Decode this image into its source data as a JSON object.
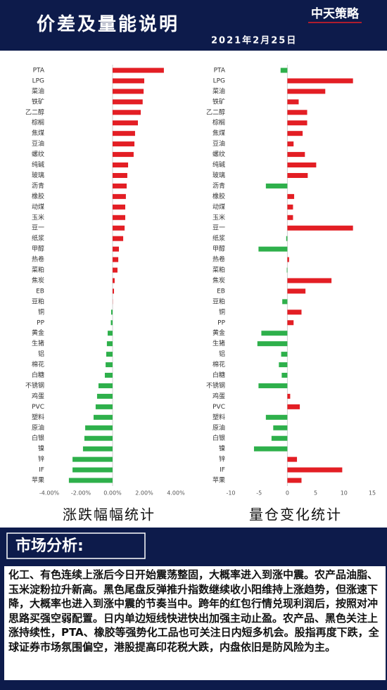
{
  "header": {
    "title": "价差及量能说明",
    "date": "2021年2月25日",
    "logo": "中天策略"
  },
  "chart_data": [
    {
      "type": "bar",
      "orientation": "horizontal",
      "title": "涨跌幅幅统计",
      "categories": [
        "PTA",
        "LPG",
        "菜油",
        "铁矿",
        "乙二醇",
        "棕榈",
        "焦煤",
        "豆油",
        "螺纹",
        "纯碱",
        "玻璃",
        "沥青",
        "橡胶",
        "动煤",
        "玉米",
        "豆一",
        "纸浆",
        "甲醇",
        "热卷",
        "菜粕",
        "焦炭",
        "EB",
        "豆粕",
        "铜",
        "PP",
        "黄金",
        "生猪",
        "铝",
        "棉花",
        "白糖",
        "不锈钢",
        "鸡蛋",
        "PVC",
        "塑料",
        "原油",
        "白银",
        "镍",
        "锌",
        "IF",
        "苹果"
      ],
      "values": [
        3.24,
        2.0,
        1.96,
        1.9,
        1.78,
        1.6,
        1.42,
        1.38,
        1.33,
        0.98,
        0.93,
        0.89,
        0.84,
        0.8,
        0.8,
        0.76,
        0.67,
        0.4,
        0.36,
        0.31,
        0.13,
        0.09,
        0.01,
        -0.09,
        -0.11,
        -0.31,
        -0.36,
        -0.4,
        -0.44,
        -0.49,
        -0.89,
        -0.98,
        -1.07,
        -1.2,
        -1.73,
        -1.78,
        -1.87,
        -2.53,
        -2.53,
        -2.76
      ],
      "xlim": [
        -4,
        4
      ],
      "xticks": [
        {
          "value": -4,
          "label": "-4.00%"
        },
        {
          "value": -2,
          "label": "-2.00%"
        },
        {
          "value": 0,
          "label": "0.00%"
        },
        {
          "value": 2,
          "label": "2.00%"
        },
        {
          "value": 4,
          "label": "4.00%"
        }
      ],
      "positive_color": "#e31e24",
      "negative_color": "#2eb04b"
    },
    {
      "type": "bar",
      "orientation": "horizontal",
      "title": "量仓变化统计",
      "categories": [
        "PTA",
        "LPG",
        "菜油",
        "铁矿",
        "乙二醇",
        "棕榈",
        "焦煤",
        "豆油",
        "螺纹",
        "纯碱",
        "玻璃",
        "沥青",
        "橡胶",
        "动煤",
        "玉米",
        "豆一",
        "纸浆",
        "甲醇",
        "热卷",
        "菜粕",
        "焦炭",
        "EB",
        "豆粕",
        "铜",
        "PP",
        "黄金",
        "生猪",
        "铝",
        "棉花",
        "白糖",
        "不锈钢",
        "鸡蛋",
        "PVC",
        "塑料",
        "原油",
        "白银",
        "镍",
        "锌",
        "IF",
        "苹果"
      ],
      "values": [
        -1.2,
        11.6,
        6.7,
        2.0,
        3.5,
        3.5,
        2.7,
        1.1,
        3.1,
        5.1,
        3.6,
        -3.8,
        1.2,
        1.0,
        1.0,
        11.6,
        -0.2,
        -5.1,
        0.3,
        -0.1,
        7.8,
        3.2,
        -0.9,
        2.5,
        1.1,
        -4.6,
        -5.3,
        -1.1,
        -1.5,
        -1.0,
        -5.1,
        0.5,
        2.2,
        -3.8,
        -2.5,
        -2.8,
        -5.9,
        1.7,
        9.7,
        2.5
      ],
      "xlim": [
        -10,
        15
      ],
      "xticks": [
        -10,
        -5,
        0,
        5,
        10,
        15
      ],
      "positive_color": "#e31e24",
      "negative_color": "#2eb04b"
    }
  ],
  "analysis": {
    "title": "市场分析:",
    "text": "化工、有色连续上涨后今日开始震荡整固，大概率进入到涨中震。农产品油脂、玉米淀粉拉升新高。黑色尾盘反弹推升指数继续收小阳维持上涨趋势，但涨速下降，大概率也进入到涨中震的节奏当中。跨年的红包行情兑现利润后，按照对冲思路买强空弱配置。日内单边短线快进快出加强主动止盈。农产品、黑色关注上涨持续性，PTA、橡胶等强势化工品也可关注日内短多机会。股指再度下跌，全球证券市场氛围偏空，港股提高印花税大跌，内盘依旧是防风险为主。"
  }
}
